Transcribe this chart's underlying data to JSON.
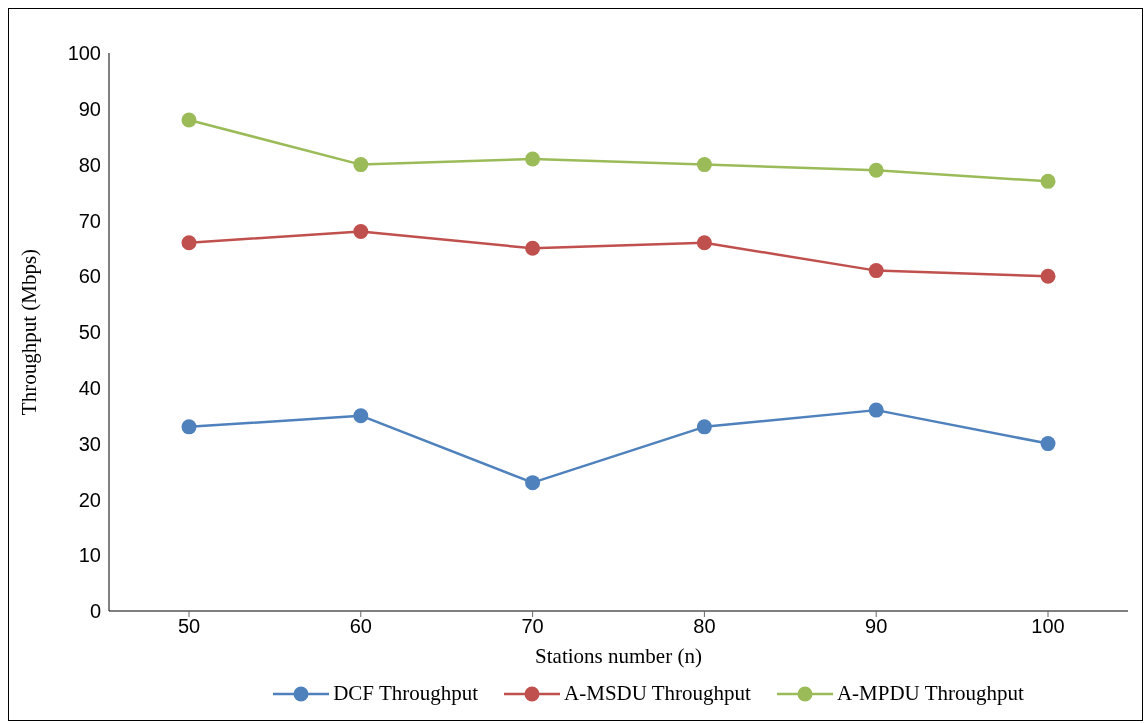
{
  "chart_data": {
    "type": "line",
    "xlabel": "Stations number (n)",
    "ylabel": "Throughput (Mbps)",
    "categories": [
      "50",
      "60",
      "70",
      "80",
      "90",
      "100"
    ],
    "series": [
      {
        "name": "DCF Throughput",
        "color": "#4f81bd",
        "values": [
          33,
          35,
          23,
          33,
          36,
          30
        ]
      },
      {
        "name": "A-MSDU Throughput",
        "color": "#c0504d",
        "values": [
          66,
          68,
          65,
          66,
          61,
          60
        ]
      },
      {
        "name": "A-MPDU Throughput",
        "color": "#9bbb59",
        "values": [
          88,
          80,
          81,
          80,
          79,
          77
        ]
      }
    ],
    "ylim": [
      0,
      100
    ],
    "yticks": [
      0,
      10,
      20,
      30,
      40,
      50,
      60,
      70,
      80,
      90,
      100
    ],
    "grid": false,
    "legend": "bottom",
    "marker": "circle",
    "line_style": "solid"
  }
}
